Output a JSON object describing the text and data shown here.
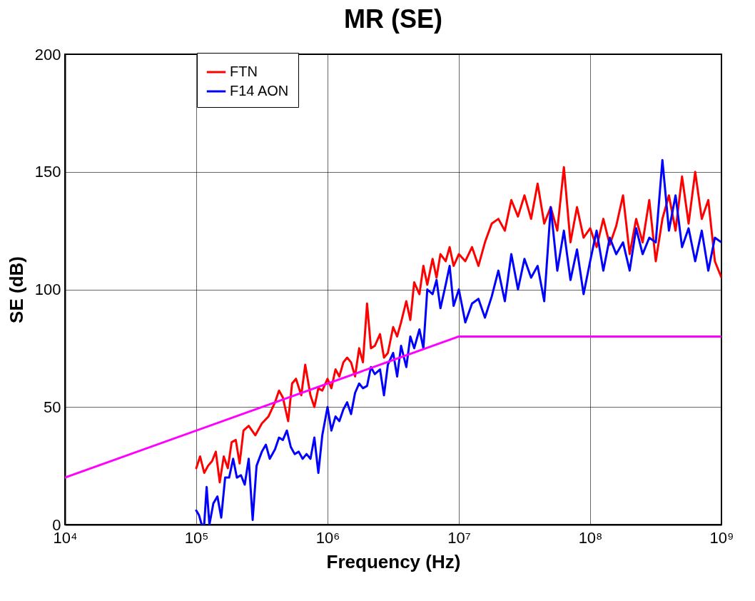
{
  "chart_data": {
    "type": "line",
    "title": "MR (SE)",
    "xlabel": "Frequency (Hz)",
    "ylabel": "SE (dB)",
    "log": "x",
    "grid": true,
    "legend": "top left",
    "line_style": "solid",
    "marker": "none",
    "xlim": [
      10000,
      1000000000
    ],
    "xticks": [
      {
        "value": 10000,
        "label": "10⁴"
      },
      {
        "value": 100000,
        "label": "10⁵"
      },
      {
        "value": 1000000,
        "label": "10⁶"
      },
      {
        "value": 10000000,
        "label": "10⁷"
      },
      {
        "value": 100000000,
        "label": "10⁸"
      },
      {
        "value": 1000000000,
        "label": "10⁹"
      }
    ],
    "ylim": [
      0,
      200
    ],
    "yticks": [
      0,
      50,
      100,
      150,
      200
    ],
    "series": [
      {
        "name": "FTN",
        "color": "#ff0000",
        "x": [
          100000,
          107000,
          115000,
          123000,
          132000,
          141000,
          151000,
          162000,
          174000,
          186000,
          200000,
          214000,
          229000,
          251000,
          282000,
          316000,
          355000,
          398000,
          427000,
          457000,
          501000,
          537000,
          575000,
          631000,
          676000,
          741000,
          794000,
          851000,
          912000,
          1000000,
          1070000,
          1150000,
          1230000,
          1320000,
          1410000,
          1510000,
          1620000,
          1740000,
          1860000,
          2000000,
          2140000,
          2290000,
          2510000,
          2690000,
          2880000,
          3160000,
          3390000,
          3630000,
          3980000,
          4270000,
          4570000,
          5010000,
          5370000,
          5750000,
          6310000,
          6760000,
          7240000,
          7940000,
          8510000,
          9120000,
          10000000,
          11200000,
          12600000,
          14100000,
          15800000,
          17800000,
          20000000,
          22400000,
          25100000,
          28200000,
          31600000,
          35500000,
          39800000,
          44700000,
          50100000,
          56200000,
          63100000,
          70800000,
          79400000,
          89100000,
          100000000,
          112000000,
          126000000,
          141000000,
          158000000,
          178000000,
          200000000,
          224000000,
          251000000,
          282000000,
          316000000,
          355000000,
          398000000,
          447000000,
          501000000,
          562000000,
          631000000,
          708000000,
          794000000,
          891000000,
          1000000000
        ],
        "values": [
          24,
          29,
          22,
          25,
          27,
          31,
          18,
          29,
          24,
          35,
          36,
          26,
          40,
          42,
          38,
          43,
          46,
          52,
          57,
          54,
          44,
          60,
          62,
          55,
          68,
          55,
          50,
          58,
          57,
          62,
          58,
          66,
          63,
          69,
          71,
          69,
          63,
          75,
          69,
          94,
          75,
          76,
          81,
          71,
          73,
          84,
          80,
          86,
          95,
          87,
          103,
          98,
          110,
          102,
          113,
          105,
          115,
          112,
          118,
          110,
          115,
          112,
          118,
          110,
          120,
          128,
          130,
          125,
          138,
          131,
          140,
          130,
          145,
          128,
          135,
          125,
          152,
          120,
          135,
          122,
          126,
          118,
          130,
          119,
          127,
          140,
          115,
          130,
          120,
          138,
          112,
          130,
          140,
          125,
          148,
          128,
          150,
          130,
          138,
          112,
          105
        ]
      },
      {
        "name": "F14 AON",
        "color": "#0000ff",
        "x": [
          100000,
          105000,
          110000,
          115000,
          120000,
          126000,
          135000,
          145000,
          155000,
          166000,
          178000,
          191000,
          204000,
          219000,
          234000,
          251000,
          269000,
          288000,
          316000,
          339000,
          363000,
          398000,
          427000,
          457000,
          490000,
          525000,
          562000,
          603000,
          646000,
          692000,
          741000,
          794000,
          851000,
          912000,
          1000000,
          1070000,
          1150000,
          1230000,
          1320000,
          1410000,
          1510000,
          1620000,
          1740000,
          1860000,
          2000000,
          2140000,
          2290000,
          2510000,
          2690000,
          2880000,
          3160000,
          3390000,
          3630000,
          3980000,
          4270000,
          4570000,
          5010000,
          5370000,
          5750000,
          6310000,
          6760000,
          7240000,
          7940000,
          8510000,
          9120000,
          10000000,
          11200000,
          12600000,
          14100000,
          15800000,
          17800000,
          20000000,
          22400000,
          25100000,
          28200000,
          31600000,
          35500000,
          39800000,
          44700000,
          50100000,
          56200000,
          63100000,
          70800000,
          79400000,
          89100000,
          100000000,
          112000000,
          126000000,
          141000000,
          158000000,
          178000000,
          200000000,
          224000000,
          251000000,
          282000000,
          316000000,
          355000000,
          398000000,
          447000000,
          501000000,
          562000000,
          631000000,
          708000000,
          794000000,
          891000000,
          1000000000
        ],
        "values": [
          6,
          4,
          0,
          0,
          16,
          0,
          9,
          12,
          3,
          20,
          20,
          28,
          20,
          21,
          17,
          28,
          2,
          25,
          31,
          34,
          28,
          32,
          37,
          36,
          40,
          33,
          30,
          31,
          28,
          30,
          28,
          37,
          22,
          38,
          50,
          40,
          46,
          44,
          49,
          52,
          47,
          56,
          60,
          58,
          59,
          67,
          64,
          66,
          55,
          68,
          73,
          63,
          76,
          67,
          80,
          75,
          83,
          75,
          100,
          98,
          104,
          92,
          102,
          110,
          93,
          100,
          86,
          94,
          96,
          88,
          97,
          108,
          95,
          115,
          100,
          113,
          105,
          110,
          95,
          135,
          108,
          125,
          104,
          117,
          98,
          112,
          125,
          108,
          122,
          115,
          120,
          108,
          126,
          115,
          122,
          120,
          155,
          125,
          140,
          118,
          126,
          112,
          125,
          108,
          122,
          120
        ]
      },
      {
        "color": "#ff00ff",
        "x": [
          10000,
          10000000,
          1000000000
        ],
        "values": [
          20,
          80,
          80
        ]
      }
    ]
  }
}
